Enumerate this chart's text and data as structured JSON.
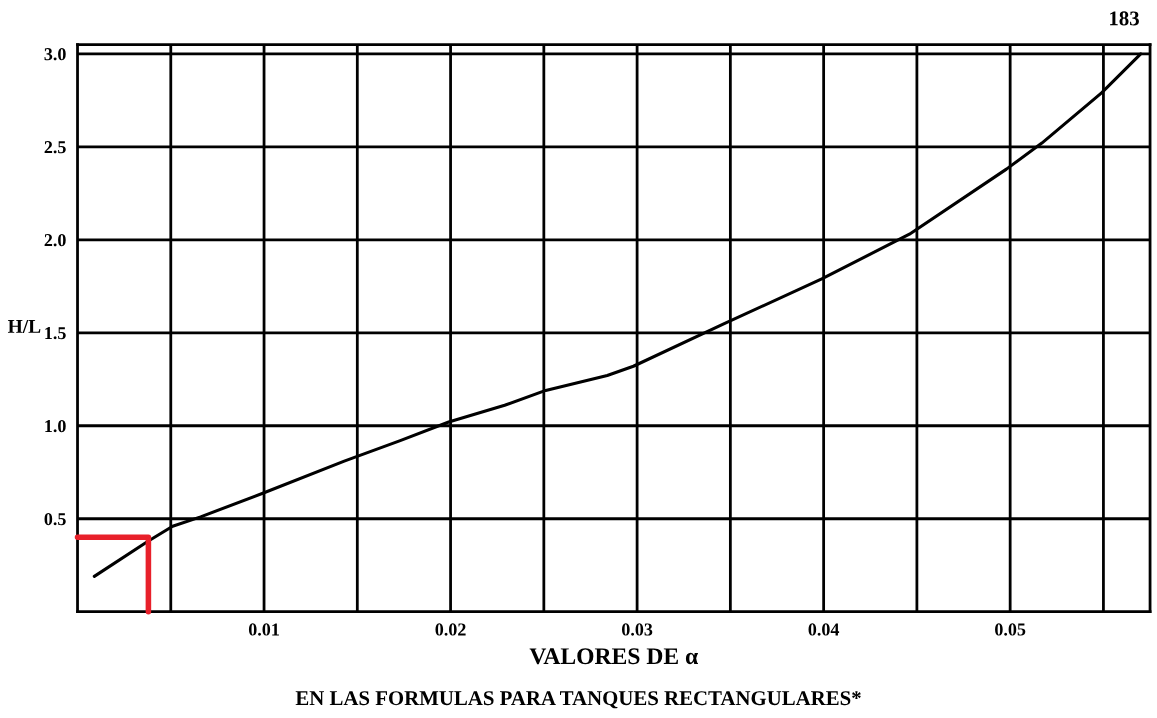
{
  "chart_data": {
    "type": "line",
    "xlabel": "VALORES DE α",
    "ylabel": "H/L",
    "annotations": [
      "EN LAS FORMULAS PARA TANQUES RECTANGULARES*",
      "183"
    ],
    "xlim": [
      0,
      0.0575
    ],
    "ylim": [
      0,
      3.05
    ],
    "xticks": [
      {
        "value": 0.005,
        "label": null
      },
      0.01,
      {
        "value": 0.015,
        "label": null
      },
      0.02,
      {
        "value": 0.025,
        "label": null
      },
      0.03,
      {
        "value": 0.035,
        "label": null
      },
      0.04,
      {
        "value": 0.045,
        "label": null
      },
      0.05,
      {
        "value": 0.055,
        "label": null
      }
    ],
    "yticks": [
      {
        "value": 0.5,
        "label": "0.5"
      },
      {
        "value": 1.0,
        "label": "1.0"
      },
      {
        "value": 1.5,
        "label": "1.5"
      },
      {
        "value": 2.0,
        "label": "2.0"
      },
      {
        "value": 2.5,
        "label": "2.5"
      },
      {
        "value": 3.0,
        "label": "3.0"
      }
    ],
    "grid": true,
    "marker": "none",
    "line_style": "solid",
    "series": [
      {
        "color": "#000000",
        "x": [
          0.0009,
          0.0038,
          0.0051,
          0.0066,
          0.01,
          0.0143,
          0.0173,
          0.0199,
          0.0229,
          0.0251,
          0.0284,
          0.0298,
          0.0347,
          0.0399,
          0.0446,
          0.0498,
          0.0517,
          0.0549,
          0.057
        ],
        "values": [
          0.19,
          0.38,
          0.46,
          0.51,
          0.64,
          0.81,
          0.92,
          1.02,
          1.11,
          1.19,
          1.27,
          1.32,
          1.55,
          1.79,
          2.03,
          2.38,
          2.52,
          2.79,
          3.0
        ]
      },
      {
        "color": "#e8202a",
        "x": [
          0,
          0.0038,
          0.0038
        ],
        "values": [
          0.4,
          0.4,
          0
        ]
      }
    ]
  }
}
